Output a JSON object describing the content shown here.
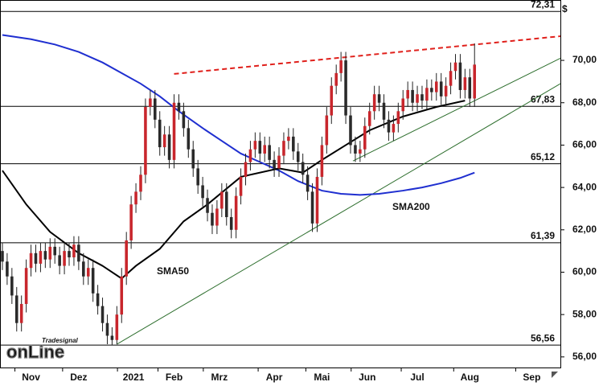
{
  "chart_data": {
    "type": "candlestick",
    "y_axis_unit": "$",
    "xlim": [
      -13,
      222
    ],
    "ylim": [
      55.5,
      72.85
    ],
    "xticks": [
      {
        "value": 0,
        "label": "Nov"
      },
      {
        "value": 20,
        "label": "Dez"
      },
      {
        "value": 43,
        "label": "2021"
      },
      {
        "value": 60,
        "label": "Feb"
      },
      {
        "value": 79,
        "label": "Mrz"
      },
      {
        "value": 102,
        "label": "Apr"
      },
      {
        "value": 122,
        "label": "Mai"
      },
      {
        "value": 141,
        "label": "Jun"
      },
      {
        "value": 162,
        "label": "Jul"
      },
      {
        "value": 184,
        "label": "Aug"
      },
      {
        "value": 210,
        "label": "Sep"
      }
    ],
    "yticks": [
      {
        "value": 56,
        "label": "56,00"
      },
      {
        "value": 58,
        "label": "58,00"
      },
      {
        "value": 60,
        "label": "60,00"
      },
      {
        "value": 62,
        "label": "62,00"
      },
      {
        "value": 64,
        "label": "64,00"
      },
      {
        "value": 66,
        "label": "66,00"
      },
      {
        "value": 68,
        "label": "68,00"
      },
      {
        "value": 70,
        "label": "70,00"
      }
    ],
    "up_color": "#c8262c",
    "down_color": "#2a2a2a",
    "x": [
      -12,
      -10,
      -8,
      -6,
      -4,
      -2,
      0,
      2,
      4,
      6,
      8,
      10,
      12,
      14,
      16,
      18,
      20,
      22,
      24,
      26,
      28,
      30,
      32,
      34,
      36,
      38,
      40,
      42,
      44,
      46,
      48,
      50,
      52,
      54,
      56,
      58,
      60,
      62,
      64,
      66,
      68,
      70,
      72,
      74,
      76,
      78,
      80,
      82,
      84,
      86,
      88,
      90,
      92,
      94,
      96,
      98,
      100,
      102,
      104,
      106,
      108,
      110,
      112,
      114,
      116,
      118,
      120,
      122,
      124,
      126,
      128,
      130,
      132,
      134,
      136,
      138,
      140,
      142,
      144,
      146,
      148,
      150,
      152,
      154,
      156,
      158,
      160,
      162,
      164,
      166,
      168,
      170,
      172,
      174,
      176,
      178,
      180,
      182,
      184,
      186
    ],
    "open": [
      61.0,
      60.5,
      59.8,
      58.9,
      57.6,
      58.5,
      60.2,
      60.9,
      60.4,
      61.0,
      60.6,
      61.2,
      60.8,
      60.3,
      61.0,
      60.7,
      61.3,
      60.5,
      59.8,
      60.2,
      59.0,
      58.4,
      57.6,
      57.0,
      56.8,
      58.0,
      59.8,
      61.5,
      63.2,
      63.8,
      64.6,
      67.8,
      68.2,
      67.2,
      65.9,
      66.5,
      65.3,
      68.0,
      67.6,
      66.8,
      65.8,
      64.9,
      64.1,
      63.5,
      62.8,
      62.2,
      63.0,
      63.8,
      62.6,
      62.0,
      63.6,
      64.5,
      65.2,
      65.8,
      66.2,
      65.6,
      66.0,
      65.3,
      64.9,
      65.5,
      66.2,
      66.4,
      65.7,
      65.2,
      64.6,
      63.8,
      62.3,
      64.5,
      66.0,
      67.4,
      68.8,
      69.4,
      70.0,
      67.4,
      66.0,
      65.6,
      65.8,
      66.9,
      67.6,
      68.4,
      68.0,
      67.2,
      66.6,
      67.0,
      67.6,
      68.2,
      68.6,
      68.0,
      68.4,
      68.1,
      68.7,
      68.5,
      69.0,
      68.3,
      68.8,
      69.5,
      69.9,
      68.6,
      69.2,
      68.2
    ],
    "high": [
      61.4,
      60.9,
      60.2,
      59.3,
      58.9,
      60.6,
      61.3,
      61.3,
      61.4,
      61.4,
      61.6,
      61.6,
      61.2,
      61.4,
      61.4,
      61.7,
      61.7,
      60.9,
      60.6,
      60.6,
      59.4,
      58.8,
      58.0,
      57.4,
      58.4,
      60.2,
      61.9,
      63.6,
      64.2,
      65.0,
      68.2,
      68.6,
      68.6,
      67.6,
      66.9,
      66.9,
      68.4,
      68.4,
      68.0,
      67.2,
      66.2,
      65.3,
      64.5,
      63.9,
      63.2,
      63.4,
      64.2,
      64.2,
      63.0,
      64.0,
      64.9,
      65.6,
      66.2,
      66.6,
      66.6,
      66.4,
      66.4,
      65.7,
      65.9,
      66.6,
      66.8,
      66.8,
      66.1,
      65.6,
      65.0,
      64.2,
      64.9,
      66.4,
      67.8,
      69.2,
      69.8,
      70.4,
      70.4,
      67.8,
      66.4,
      66.2,
      67.3,
      68.0,
      68.8,
      68.8,
      68.4,
      67.6,
      67.4,
      68.0,
      68.6,
      69.0,
      69.0,
      68.8,
      68.8,
      69.1,
      69.1,
      69.4,
      69.4,
      69.2,
      69.9,
      70.3,
      70.3,
      69.6,
      69.6,
      70.8
    ],
    "low": [
      60.1,
      59.4,
      58.5,
      57.2,
      57.2,
      58.1,
      59.8,
      60.0,
      60.0,
      60.2,
      60.2,
      60.4,
      59.9,
      59.9,
      60.3,
      60.3,
      60.1,
      59.4,
      59.4,
      58.6,
      58.0,
      57.2,
      56.6,
      56.56,
      56.6,
      57.6,
      59.4,
      61.1,
      62.8,
      63.4,
      64.2,
      67.4,
      66.8,
      65.5,
      65.5,
      64.9,
      64.9,
      67.2,
      66.4,
      65.4,
      64.5,
      63.7,
      63.1,
      62.4,
      61.8,
      61.8,
      62.6,
      62.2,
      61.6,
      61.6,
      63.2,
      64.1,
      64.8,
      65.4,
      65.2,
      65.2,
      64.9,
      64.5,
      64.5,
      65.1,
      65.8,
      65.3,
      64.8,
      64.2,
      63.4,
      61.9,
      61.9,
      64.1,
      65.6,
      67.0,
      68.4,
      69.0,
      67.0,
      65.6,
      65.2,
      65.2,
      65.4,
      66.5,
      67.2,
      67.6,
      66.8,
      66.2,
      66.2,
      66.6,
      67.2,
      67.8,
      67.6,
      67.6,
      67.7,
      67.7,
      68.1,
      68.1,
      67.9,
      67.9,
      68.4,
      69.1,
      68.2,
      68.2,
      67.8,
      67.8
    ],
    "close": [
      60.5,
      59.8,
      58.9,
      57.6,
      58.5,
      60.2,
      60.9,
      60.4,
      61.0,
      60.6,
      61.2,
      60.8,
      60.3,
      61.0,
      60.7,
      61.3,
      60.5,
      59.8,
      60.2,
      59.0,
      58.4,
      57.6,
      57.0,
      56.8,
      58.0,
      59.8,
      61.5,
      63.2,
      63.8,
      64.6,
      67.8,
      68.2,
      67.2,
      65.9,
      66.5,
      65.3,
      68.0,
      67.6,
      66.8,
      65.8,
      64.9,
      64.1,
      63.5,
      62.8,
      62.2,
      63.0,
      63.8,
      62.6,
      62.0,
      63.6,
      64.5,
      65.2,
      65.8,
      66.2,
      65.6,
      66.0,
      65.3,
      64.9,
      65.5,
      66.2,
      66.4,
      65.7,
      65.2,
      64.6,
      63.8,
      62.3,
      64.5,
      66.0,
      67.4,
      68.8,
      69.4,
      70.0,
      67.4,
      66.0,
      65.6,
      65.8,
      66.9,
      67.6,
      68.4,
      68.0,
      67.2,
      66.6,
      67.0,
      67.6,
      68.2,
      68.6,
      68.0,
      68.4,
      68.1,
      68.7,
      68.5,
      69.0,
      68.3,
      68.8,
      69.5,
      69.9,
      68.6,
      69.2,
      68.2,
      69.8
    ],
    "series": [
      {
        "type": "line",
        "name": "SMA200",
        "color": "#1f2fd0",
        "x": [
          -12,
          0,
          10,
          20,
          30,
          38,
          46,
          54,
          62,
          72,
          80,
          88,
          96,
          104,
          112,
          122,
          130,
          138,
          146,
          156,
          164,
          172,
          180,
          186
        ],
        "values": [
          71.2,
          71.0,
          70.75,
          70.4,
          69.9,
          69.4,
          68.9,
          68.3,
          67.6,
          66.8,
          66.2,
          65.6,
          65.2,
          64.8,
          64.3,
          63.85,
          63.7,
          63.65,
          63.7,
          63.85,
          64.0,
          64.2,
          64.45,
          64.7
        ]
      },
      {
        "type": "line",
        "name": "SMA50",
        "color": "#000000",
        "x": [
          -12,
          -2,
          8,
          20,
          30,
          38,
          44,
          54,
          64,
          74,
          88,
          104,
          114,
          122,
          132,
          142,
          156,
          170,
          182
        ],
        "values": [
          64.8,
          63.2,
          61.9,
          60.9,
          60.3,
          59.7,
          60.3,
          61.1,
          62.4,
          63.2,
          64.5,
          64.9,
          64.7,
          65.3,
          66.0,
          66.7,
          67.35,
          67.8,
          68.1
        ]
      }
    ],
    "levels": [
      {
        "value": 72.31,
        "label": "72,31"
      },
      {
        "value": 67.83,
        "label": "67,83"
      },
      {
        "value": 65.12,
        "label": "65,12"
      },
      {
        "value": 61.39,
        "label": "61,39"
      },
      {
        "value": 56.56,
        "label": "56,56"
      }
    ],
    "trendlines": [
      {
        "x": [
          60,
          222
        ],
        "values": [
          69.36,
          71.14
        ],
        "color": "#e0201b",
        "dashed": true
      },
      {
        "x": [
          36,
          222
        ],
        "values": [
          56.6,
          68.9
        ],
        "color": "#2d6e2d",
        "dashed": false
      },
      {
        "x": [
          135,
          222
        ],
        "values": [
          65.25,
          70.1
        ],
        "color": "#2d6e2d",
        "dashed": false
      }
    ],
    "logo": {
      "small": "Tradesignal",
      "main": "onLine"
    }
  }
}
